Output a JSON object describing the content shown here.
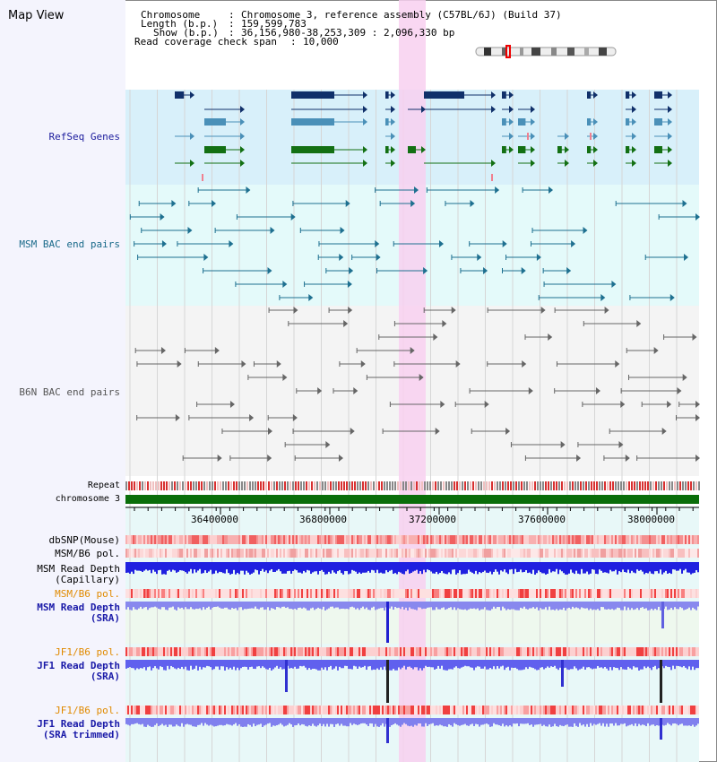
{
  "title": "Map View",
  "info": {
    "chromosome_label": "Chromosome",
    "chromosome_value": "Chromosome 3, reference assembly (C57BL/6J) (Build 37)",
    "length_label": "Length (b.p.)",
    "length_value": "159,599,783",
    "show_label": "Show (b.p.)",
    "show_value": "36,156,980-38,253,309 : 2,096,330 bp",
    "span_label": "Read coverage check span",
    "span_value": "10,000",
    "sep": ":"
  },
  "tracks": {
    "refseq": "RefSeq Genes",
    "msm_bac": "MSM BAC end pairs",
    "b6n_bac": "B6N BAC end pairs",
    "repeat": "Repeat",
    "chromosome": "chromosome 3",
    "dbsnp": "dbSNP(Mouse)",
    "msm_b6_pol": "MSM/B6 pol.",
    "msm_depth_cap_1": "MSM Read Depth",
    "msm_depth_cap_2": "(Capillary)",
    "msm_b6_pol2": "MSM/B6 pol.",
    "msm_depth_sra_1": "MSM Read Depth",
    "msm_depth_sra_2": "(SRA)",
    "jf1_b6_pol": "JF1/B6 pol.",
    "jf1_depth_sra_1": "JF1 Read Depth",
    "jf1_depth_sra_2": "(SRA)",
    "jf1_b6_pol2": "JF1/B6 pol.",
    "jf1_depth_trim_1": "JF1 Read Depth",
    "jf1_depth_trim_2": "(SRA trimmed)"
  },
  "axis": {
    "ticks": [
      "36400000",
      "36800000",
      "37200000",
      "37600000",
      "38000000"
    ]
  },
  "colors": {
    "refseq_label": "#1a1a9c",
    "msm_label": "#1a6a8a",
    "b6n_label": "#555555",
    "pol_label": "#e08a00",
    "depth_label": "#1a1aa8",
    "highlight": "#f8d0f0",
    "chromosome_bar": "#0a6e0a"
  }
}
